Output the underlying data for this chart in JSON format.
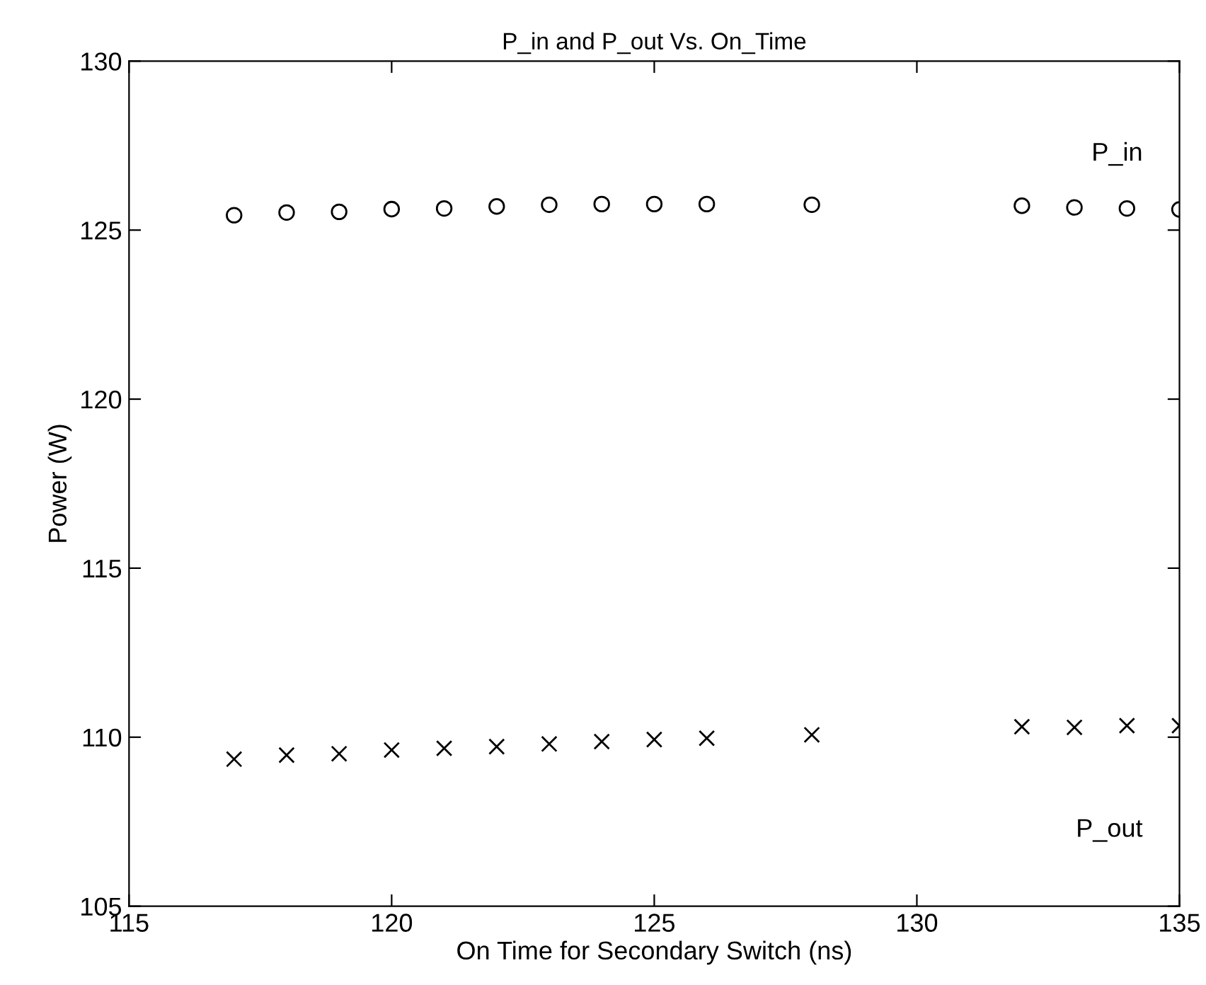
{
  "chart_data": {
    "type": "scatter",
    "title": "P_in and P_out Vs. On_Time",
    "xlabel": "On Time for Secondary Switch (ns)",
    "ylabel": "Power (W)",
    "x": [
      117,
      118,
      119,
      120,
      121,
      122,
      123,
      124,
      125,
      126,
      128,
      132,
      133,
      134,
      135
    ],
    "series": [
      {
        "color": "#000000",
        "marker": "circle",
        "values": [
          125.44,
          125.52,
          125.54,
          125.62,
          125.64,
          125.7,
          125.75,
          125.77,
          125.77,
          125.77,
          125.75,
          125.72,
          125.67,
          125.64,
          125.61
        ]
      },
      {
        "color": "#000000",
        "marker": "cross",
        "values": [
          109.35,
          109.47,
          109.51,
          109.62,
          109.67,
          109.72,
          109.8,
          109.87,
          109.93,
          109.97,
          110.07,
          110.31,
          110.29,
          110.34,
          110.34
        ]
      }
    ],
    "annotations": [
      "P_in",
      "P_out"
    ],
    "xlim": [
      115,
      135
    ],
    "xticks": [
      115,
      120,
      125,
      130,
      135
    ],
    "ylim": [
      105,
      130
    ],
    "yticks": [
      105,
      110,
      115,
      120,
      125,
      130
    ],
    "grid": false,
    "legend": false
  }
}
